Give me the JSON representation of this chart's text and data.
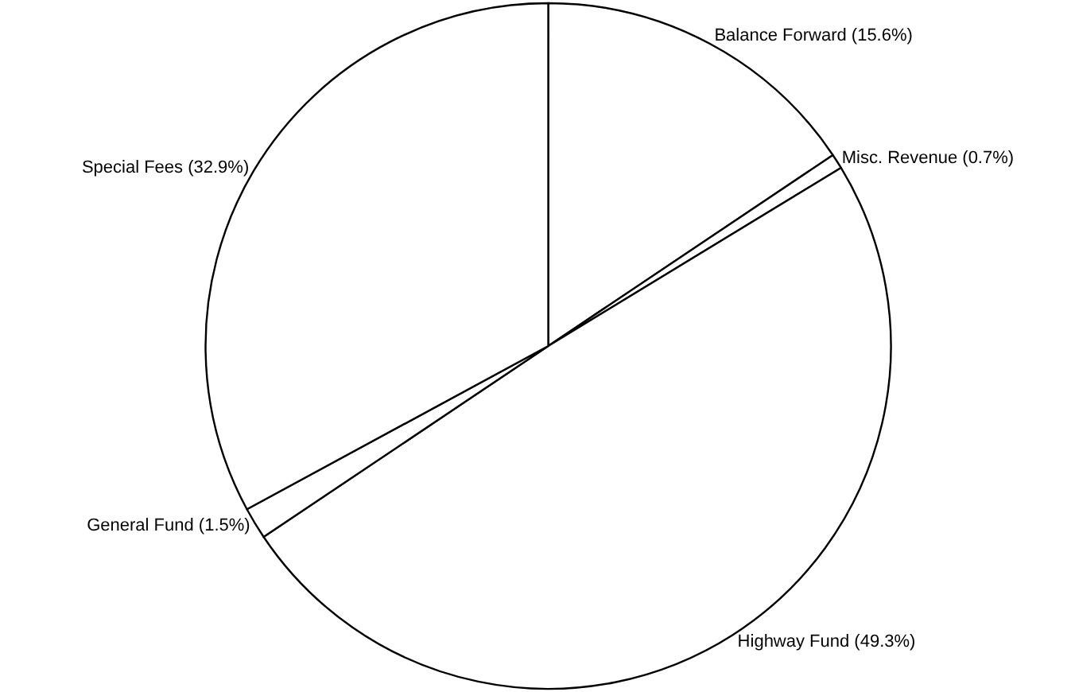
{
  "chart_data": {
    "type": "pie",
    "categories": [
      "Balance Forward",
      "Misc. Revenue",
      "Highway Fund",
      "General Fund",
      "Special Fees"
    ],
    "values": [
      15.6,
      0.7,
      49.3,
      1.5,
      32.9
    ],
    "colors": [
      "#ffffff",
      "#ffffff",
      "#ffffff",
      "#ffffff",
      "#ffffff"
    ],
    "value_labels": [
      "(15.6%)",
      "(0.7%)",
      "(49.3%)",
      "(1.5%)",
      "(32.9%)"
    ],
    "legend": false
  }
}
